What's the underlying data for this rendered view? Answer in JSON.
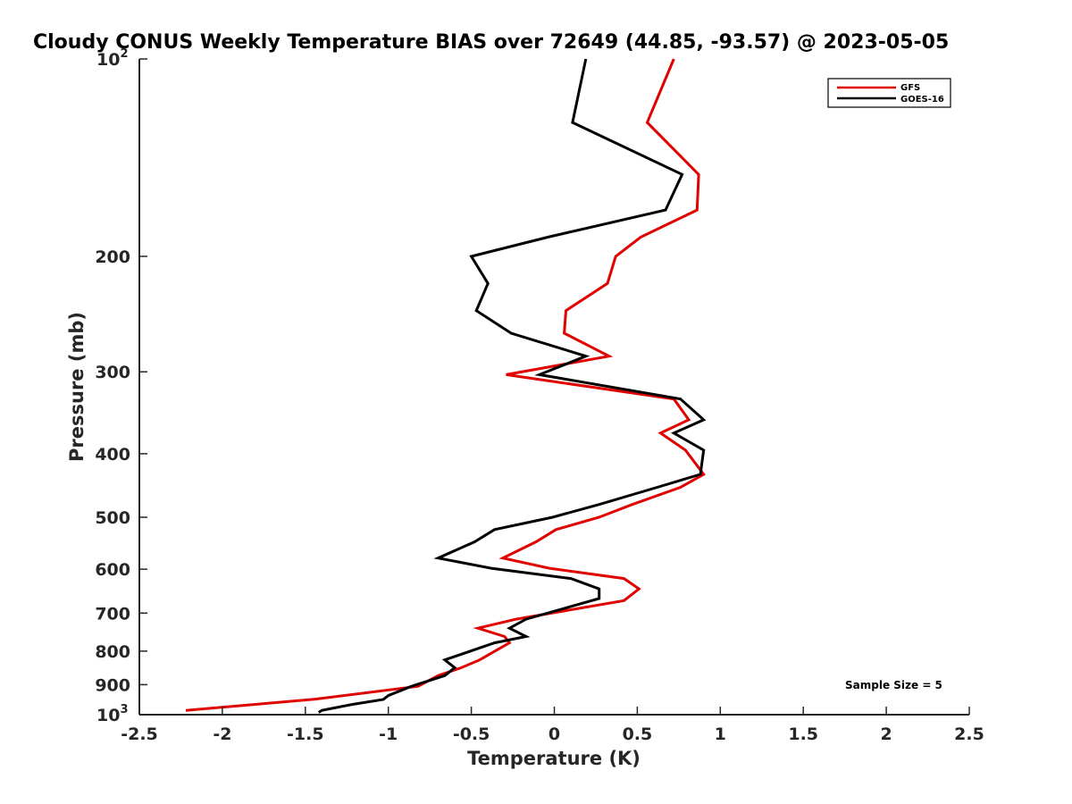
{
  "chart_data": {
    "type": "line",
    "title": "Cloudy CONUS Weekly Temperature BIAS over 72649 (44.85, -93.57) @ 2023-05-05",
    "xlabel": "Temperature (K)",
    "ylabel": "Pressure (mb)",
    "xlim": [
      -2.5,
      2.5
    ],
    "ylim": [
      100,
      1000
    ],
    "y_scale": "log",
    "y_reversed": true,
    "grid": false,
    "legend_position": "top-right",
    "x_ticks": [
      "-2.5",
      "-2",
      "-1.5",
      "-1",
      "-0.5",
      "0",
      "0.5",
      "1",
      "1.5",
      "2",
      "2.5"
    ],
    "y_ticks": [
      {
        "value": 100,
        "base": "10",
        "exp": "2"
      },
      {
        "value": 200,
        "label": "200"
      },
      {
        "value": 300,
        "label": "300"
      },
      {
        "value": 400,
        "label": "400"
      },
      {
        "value": 500,
        "label": "500"
      },
      {
        "value": 600,
        "label": "600"
      },
      {
        "value": 700,
        "label": "700"
      },
      {
        "value": 800,
        "label": "800"
      },
      {
        "value": 900,
        "label": "900"
      },
      {
        "value": 1000,
        "base": "10",
        "exp": "3"
      }
    ],
    "annotation": "Sample Size = 5",
    "series": [
      {
        "name": "GFS",
        "color": "#e00000",
        "points": [
          [
            0.72,
            100
          ],
          [
            0.56,
            125
          ],
          [
            0.87,
            150
          ],
          [
            0.86,
            170
          ],
          [
            0.52,
            187
          ],
          [
            0.37,
            200
          ],
          [
            0.32,
            220
          ],
          [
            0.07,
            242
          ],
          [
            0.06,
            262
          ],
          [
            0.33,
            284
          ],
          [
            -0.29,
            303
          ],
          [
            0.72,
            330
          ],
          [
            0.81,
            355
          ],
          [
            0.64,
            372
          ],
          [
            0.79,
            395
          ],
          [
            0.9,
            430
          ],
          [
            0.76,
            450
          ],
          [
            0.47,
            478
          ],
          [
            0.27,
            500
          ],
          [
            0.01,
            522
          ],
          [
            -0.11,
            545
          ],
          [
            -0.31,
            577
          ],
          [
            -0.03,
            598
          ],
          [
            0.42,
            620
          ],
          [
            0.51,
            643
          ],
          [
            0.42,
            670
          ],
          [
            -0.23,
            715
          ],
          [
            -0.46,
            738
          ],
          [
            -0.3,
            760
          ],
          [
            -0.27,
            777
          ],
          [
            -0.45,
            825
          ],
          [
            -0.56,
            848
          ],
          [
            -0.7,
            872
          ],
          [
            -0.82,
            905
          ],
          [
            -1.44,
            947
          ],
          [
            -2.22,
            985
          ]
        ]
      },
      {
        "name": "GOES-16",
        "color": "#000000",
        "points": [
          [
            0.19,
            100
          ],
          [
            0.11,
            125
          ],
          [
            0.77,
            150
          ],
          [
            0.67,
            170
          ],
          [
            -0.04,
            187
          ],
          [
            -0.5,
            200
          ],
          [
            -0.4,
            220
          ],
          [
            -0.47,
            242
          ],
          [
            -0.26,
            262
          ],
          [
            0.19,
            284
          ],
          [
            -0.09,
            303
          ],
          [
            0.76,
            330
          ],
          [
            0.9,
            355
          ],
          [
            0.72,
            372
          ],
          [
            0.9,
            395
          ],
          [
            0.88,
            430
          ],
          [
            0.62,
            450
          ],
          [
            0.27,
            478
          ],
          [
            -0.01,
            500
          ],
          [
            -0.36,
            522
          ],
          [
            -0.48,
            545
          ],
          [
            -0.7,
            577
          ],
          [
            -0.38,
            598
          ],
          [
            0.1,
            620
          ],
          [
            0.27,
            643
          ],
          [
            0.27,
            665
          ],
          [
            -0.17,
            715
          ],
          [
            -0.27,
            738
          ],
          [
            -0.17,
            760
          ],
          [
            -0.36,
            777
          ],
          [
            -0.66,
            825
          ],
          [
            -0.6,
            848
          ],
          [
            -0.66,
            872
          ],
          [
            -0.86,
            905
          ],
          [
            -1.0,
            935
          ],
          [
            -1.03,
            948
          ],
          [
            -1.22,
            965
          ],
          [
            -1.4,
            985
          ],
          [
            -1.42,
            992
          ]
        ]
      }
    ]
  }
}
